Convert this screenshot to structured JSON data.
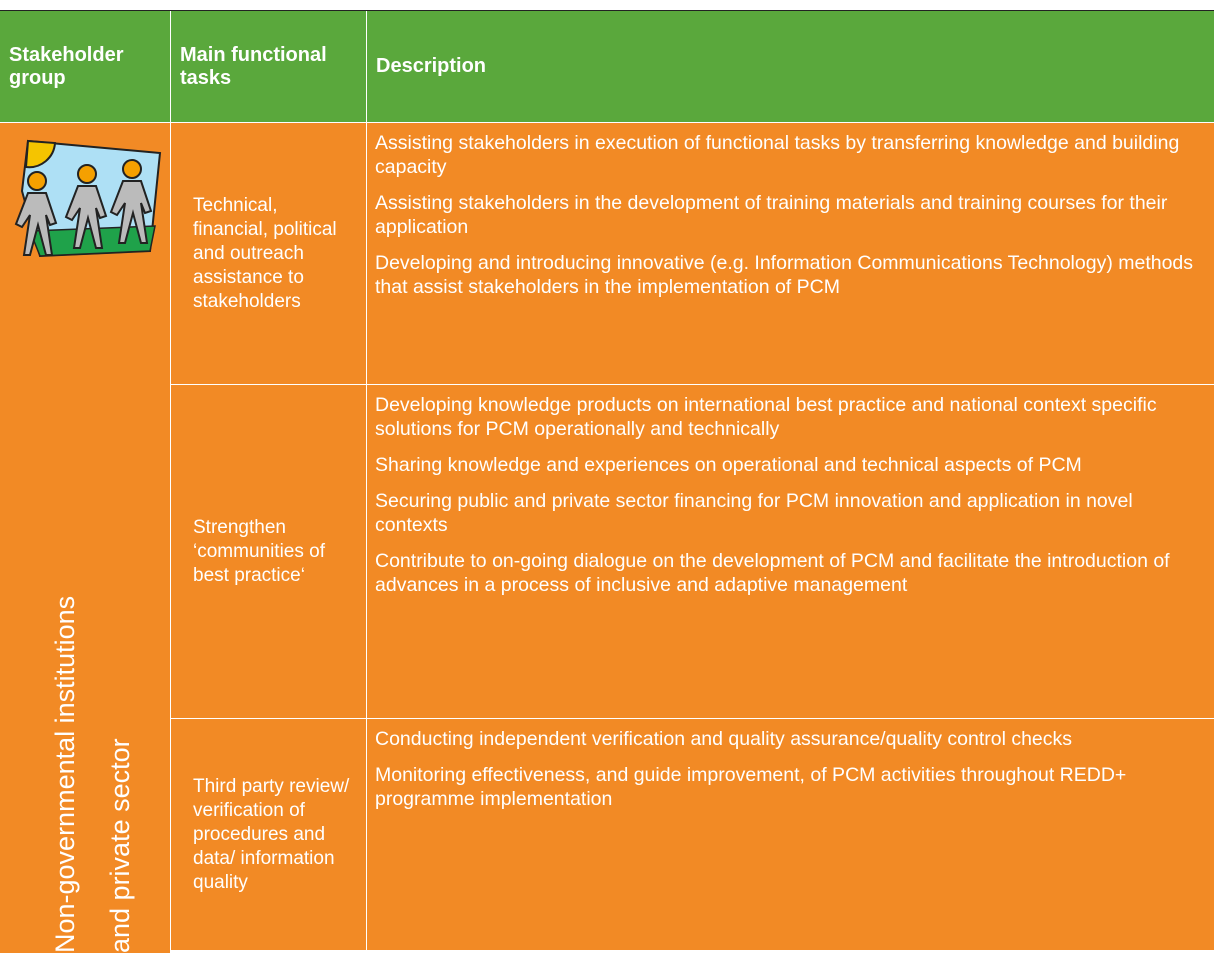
{
  "header": {
    "columns": [
      "Stakeholder group",
      "Main functional tasks",
      "Description"
    ]
  },
  "table": {
    "stakeholder_group": [
      "Non-governmental institutions",
      "and private sector"
    ],
    "rows": [
      {
        "task": "Technical, financial, political and outreach assistance to stakeholders",
        "descriptions": [
          "Assisting stakeholders in execution of functional tasks by transferring knowledge and building capacity",
          "Assisting stakeholders in the development of training materials and training courses for their application",
          "Developing and introducing innovative (e.g. Information Communications Technology) methods that assist stakeholders in the implementation of PCM"
        ]
      },
      {
        "task": "Strengthen ‘communities of best practice‘",
        "descriptions": [
          "Developing knowledge products on international best practice and national context specific solutions for PCM operationally and technically",
          "Sharing knowledge and experiences on operational and technical aspects of PCM",
          "Securing public and private sector financing for PCM innovation and application in novel contexts",
          "Contribute to on-going dialogue on the development of PCM and facilitate the introduction of advances in a process of inclusive and adaptive management"
        ]
      },
      {
        "task": "Third party review/ verification of procedures and data/ information quality",
        "descriptions": [
          "Conducting independent verification and quality assurance/quality control checks",
          "Monitoring effectiveness, and guide improvement, of PCM activities throughout REDD+ programme implementation"
        ]
      }
    ]
  }
}
